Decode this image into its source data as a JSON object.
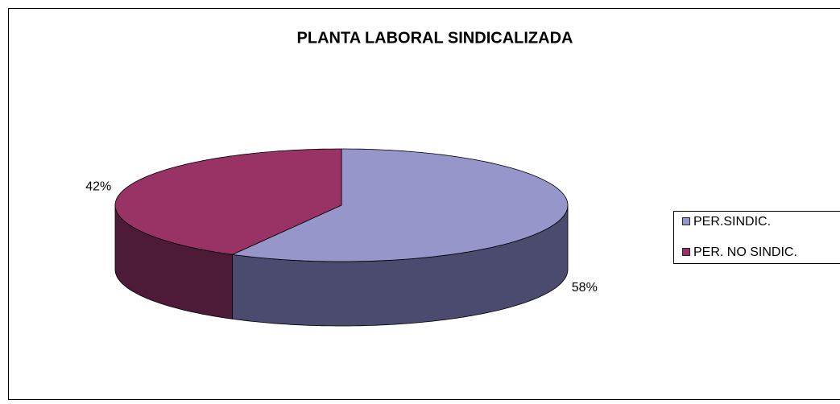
{
  "chart_data": {
    "type": "pie",
    "title": "PLANTA LABORAL SINDICALIZADA",
    "categories": [
      "PER.SINDIC.",
      "PER. NO SINDIC."
    ],
    "values": [
      58,
      42
    ],
    "value_labels": [
      "58%",
      "42%"
    ],
    "colors": [
      "#9696CA",
      "#993366"
    ],
    "legend": "right"
  }
}
